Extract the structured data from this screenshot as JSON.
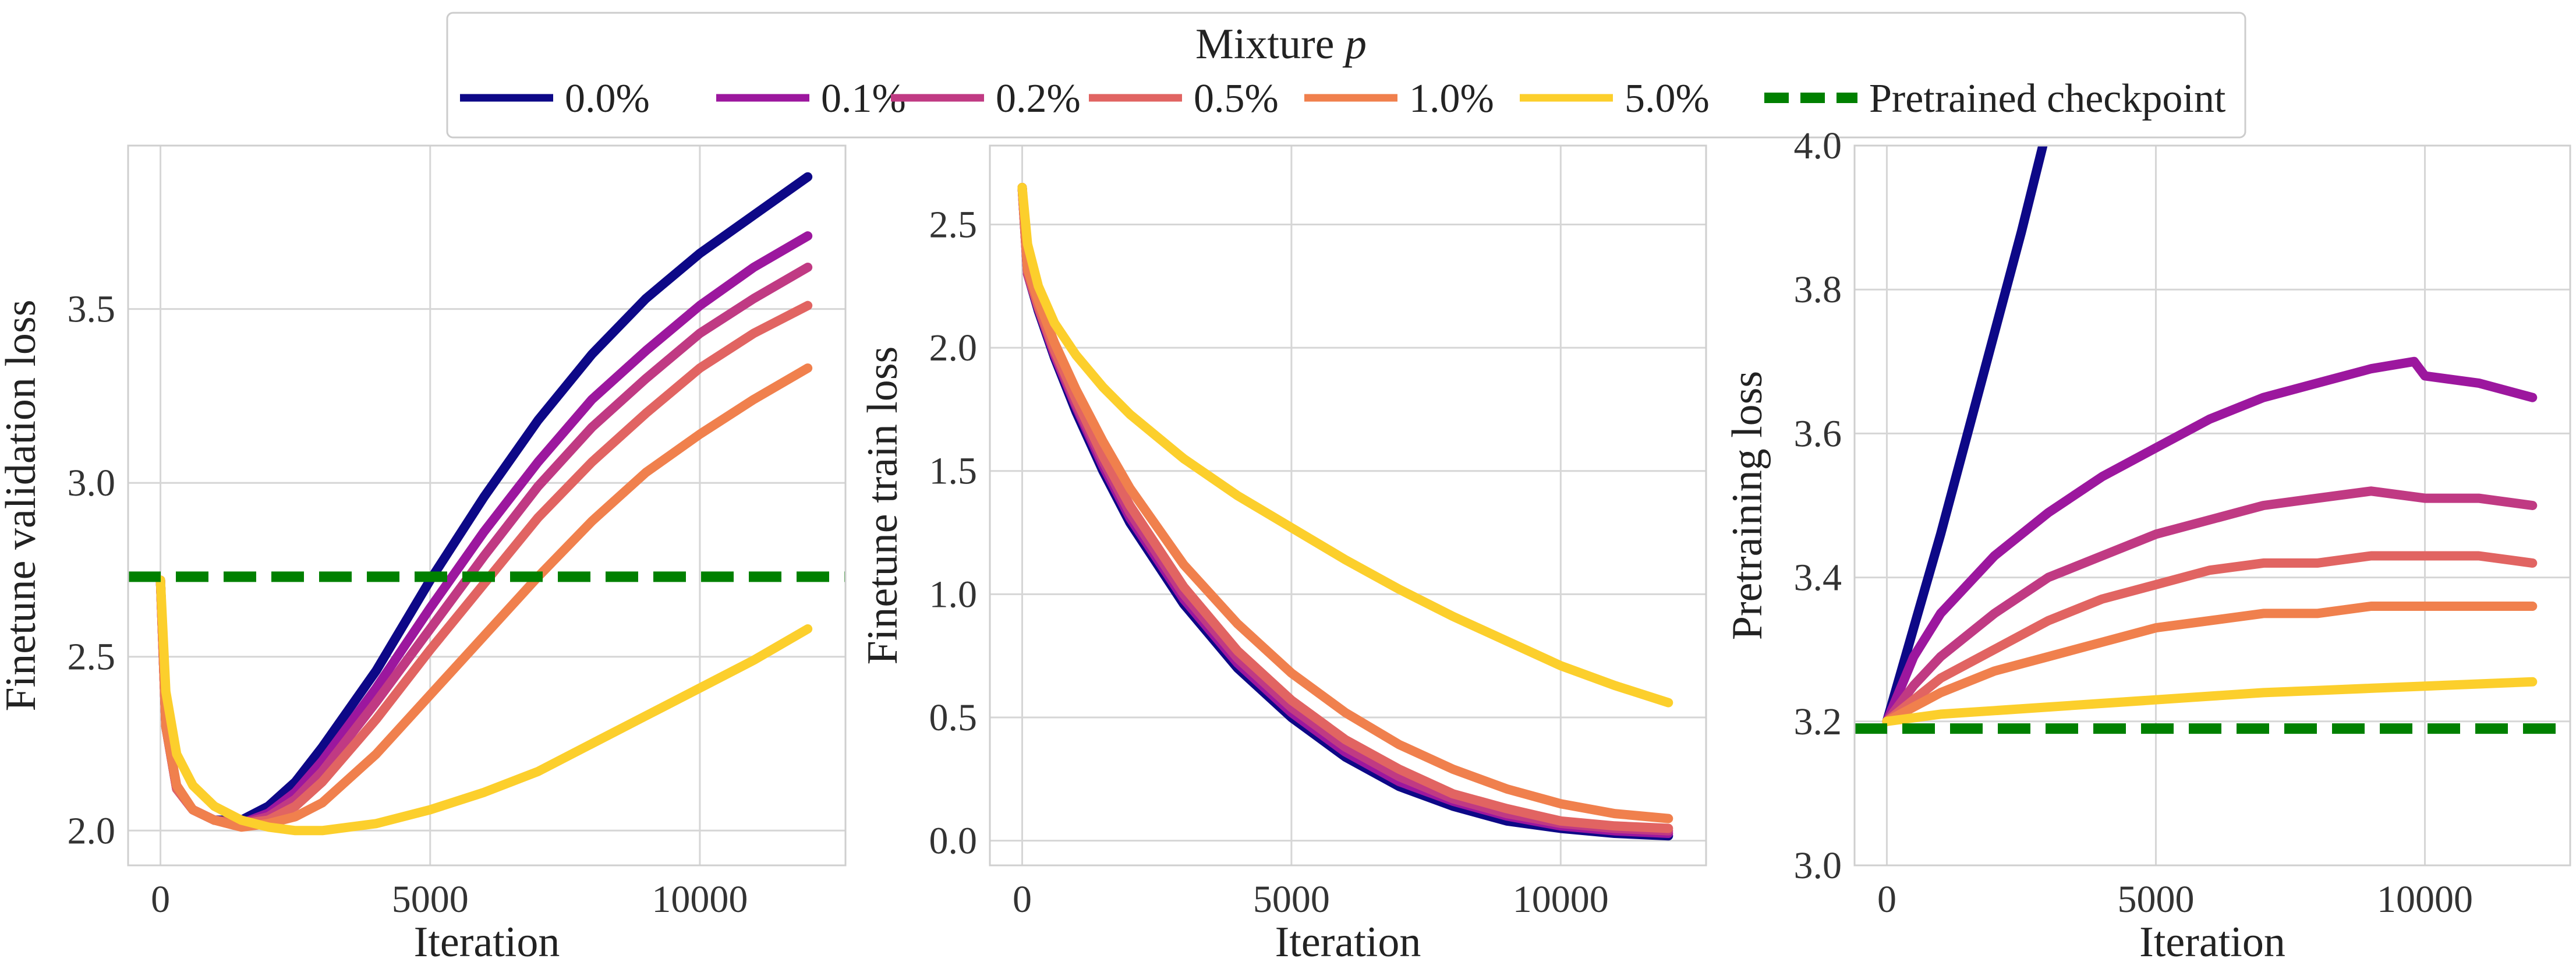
{
  "legend": {
    "title": "Mixture",
    "title_var": "p",
    "entries": [
      {
        "label": "0.0%",
        "color": "#0d0887",
        "dashed": false
      },
      {
        "label": "0.1%",
        "color": "#9c179e",
        "dashed": false
      },
      {
        "label": "0.2%",
        "color": "#c03a83",
        "dashed": false
      },
      {
        "label": "0.5%",
        "color": "#e16462",
        "dashed": false
      },
      {
        "label": "1.0%",
        "color": "#f0804d",
        "dashed": false
      },
      {
        "label": "5.0%",
        "color": "#fccf2c",
        "dashed": false
      },
      {
        "label": "Pretrained checkpoint",
        "color": "#008000",
        "dashed": true
      }
    ]
  },
  "chart_data": [
    {
      "type": "line",
      "xlabel": "Iteration",
      "ylabel": "Finetune validation loss",
      "xlim": [
        -600,
        12700
      ],
      "ylim": [
        1.9,
        3.97
      ],
      "xticks": [
        0,
        5000,
        10000
      ],
      "yticks": [
        2.0,
        2.5,
        3.0,
        3.5
      ],
      "ytick_labels": [
        "2.0",
        "2.5",
        "3.0",
        "3.5"
      ],
      "grid": true,
      "hline": {
        "y": 2.73,
        "label": "Pretrained checkpoint"
      },
      "series": [
        {
          "name": "0.0%",
          "x": [
            0,
            100,
            300,
            600,
            1000,
            1500,
            2000,
            2500,
            3000,
            4000,
            5000,
            6000,
            7000,
            8000,
            9000,
            10000,
            11000,
            12000
          ],
          "y": [
            2.72,
            2.3,
            2.12,
            2.06,
            2.03,
            2.03,
            2.07,
            2.14,
            2.24,
            2.46,
            2.72,
            2.96,
            3.18,
            3.37,
            3.53,
            3.66,
            3.77,
            3.88
          ]
        },
        {
          "name": "0.1%",
          "x": [
            0,
            100,
            300,
            600,
            1000,
            1500,
            2000,
            2500,
            3000,
            4000,
            5000,
            6000,
            7000,
            8000,
            9000,
            10000,
            11000,
            12000
          ],
          "y": [
            2.72,
            2.3,
            2.12,
            2.06,
            2.03,
            2.02,
            2.05,
            2.11,
            2.2,
            2.41,
            2.64,
            2.86,
            3.06,
            3.24,
            3.38,
            3.51,
            3.62,
            3.71
          ]
        },
        {
          "name": "0.2%",
          "x": [
            0,
            100,
            300,
            600,
            1000,
            1500,
            2000,
            2500,
            3000,
            4000,
            5000,
            6000,
            7000,
            8000,
            9000,
            10000,
            11000,
            12000
          ],
          "y": [
            2.72,
            2.3,
            2.12,
            2.06,
            2.03,
            2.02,
            2.04,
            2.09,
            2.17,
            2.37,
            2.58,
            2.79,
            2.99,
            3.16,
            3.3,
            3.43,
            3.53,
            3.62
          ]
        },
        {
          "name": "0.5%",
          "x": [
            0,
            100,
            300,
            600,
            1000,
            1500,
            2000,
            2500,
            3000,
            4000,
            5000,
            6000,
            7000,
            8000,
            9000,
            10000,
            11000,
            12000
          ],
          "y": [
            2.72,
            2.3,
            2.12,
            2.06,
            2.03,
            2.02,
            2.03,
            2.07,
            2.14,
            2.32,
            2.52,
            2.71,
            2.9,
            3.06,
            3.2,
            3.33,
            3.43,
            3.51
          ]
        },
        {
          "name": "1.0%",
          "x": [
            0,
            100,
            300,
            600,
            1000,
            1500,
            2000,
            2500,
            3000,
            4000,
            5000,
            6000,
            7000,
            8000,
            9000,
            10000,
            11000,
            12000
          ],
          "y": [
            2.72,
            2.3,
            2.13,
            2.06,
            2.03,
            2.01,
            2.02,
            2.04,
            2.08,
            2.22,
            2.39,
            2.56,
            2.73,
            2.89,
            3.03,
            3.14,
            3.24,
            3.33
          ]
        },
        {
          "name": "5.0%",
          "x": [
            0,
            100,
            300,
            600,
            1000,
            1500,
            2000,
            2500,
            3000,
            4000,
            5000,
            6000,
            7000,
            8000,
            9000,
            10000,
            11000,
            12000
          ],
          "y": [
            2.72,
            2.4,
            2.22,
            2.13,
            2.07,
            2.03,
            2.01,
            2.0,
            2.0,
            2.02,
            2.06,
            2.11,
            2.17,
            2.25,
            2.33,
            2.41,
            2.49,
            2.58
          ]
        }
      ]
    },
    {
      "type": "line",
      "xlabel": "Iteration",
      "ylabel": "Finetune train loss",
      "xlim": [
        -600,
        12700
      ],
      "ylim": [
        -0.1,
        2.82
      ],
      "xticks": [
        0,
        5000,
        10000
      ],
      "yticks": [
        0.0,
        0.5,
        1.0,
        1.5,
        2.0,
        2.5
      ],
      "ytick_labels": [
        "0.0",
        "0.5",
        "1.0",
        "1.5",
        "2.0",
        "2.5"
      ],
      "grid": true,
      "series": [
        {
          "name": "0.0%",
          "x": [
            0,
            100,
            300,
            600,
            1000,
            1500,
            2000,
            3000,
            4000,
            5000,
            6000,
            7000,
            8000,
            9000,
            10000,
            11000,
            12000
          ],
          "y": [
            2.65,
            2.3,
            2.15,
            1.96,
            1.74,
            1.5,
            1.29,
            0.96,
            0.7,
            0.5,
            0.34,
            0.22,
            0.14,
            0.08,
            0.05,
            0.03,
            0.02
          ]
        },
        {
          "name": "0.1%",
          "x": [
            0,
            100,
            300,
            600,
            1000,
            1500,
            2000,
            3000,
            4000,
            5000,
            6000,
            7000,
            8000,
            9000,
            10000,
            11000,
            12000
          ],
          "y": [
            2.65,
            2.3,
            2.16,
            1.97,
            1.76,
            1.52,
            1.31,
            0.98,
            0.72,
            0.52,
            0.36,
            0.24,
            0.16,
            0.1,
            0.06,
            0.04,
            0.03
          ]
        },
        {
          "name": "0.2%",
          "x": [
            0,
            100,
            300,
            600,
            1000,
            1500,
            2000,
            3000,
            4000,
            5000,
            6000,
            7000,
            8000,
            9000,
            10000,
            11000,
            12000
          ],
          "y": [
            2.65,
            2.3,
            2.16,
            1.98,
            1.77,
            1.54,
            1.33,
            1.0,
            0.74,
            0.54,
            0.38,
            0.26,
            0.17,
            0.11,
            0.07,
            0.05,
            0.04
          ]
        },
        {
          "name": "0.5%",
          "x": [
            0,
            100,
            300,
            600,
            1000,
            1500,
            2000,
            3000,
            4000,
            5000,
            6000,
            7000,
            8000,
            9000,
            10000,
            11000,
            12000
          ],
          "y": [
            2.65,
            2.31,
            2.17,
            1.99,
            1.79,
            1.56,
            1.36,
            1.03,
            0.77,
            0.57,
            0.41,
            0.29,
            0.19,
            0.13,
            0.08,
            0.06,
            0.05
          ]
        },
        {
          "name": "1.0%",
          "x": [
            0,
            100,
            300,
            600,
            1000,
            1500,
            2000,
            3000,
            4000,
            5000,
            6000,
            7000,
            8000,
            9000,
            10000,
            11000,
            12000
          ],
          "y": [
            2.65,
            2.32,
            2.19,
            2.02,
            1.83,
            1.62,
            1.43,
            1.12,
            0.88,
            0.68,
            0.52,
            0.39,
            0.29,
            0.21,
            0.15,
            0.11,
            0.09
          ]
        },
        {
          "name": "5.0%",
          "x": [
            0,
            100,
            300,
            600,
            1000,
            1500,
            2000,
            3000,
            4000,
            5000,
            6000,
            7000,
            8000,
            9000,
            10000,
            11000,
            12000
          ],
          "y": [
            2.65,
            2.42,
            2.25,
            2.1,
            1.97,
            1.84,
            1.73,
            1.55,
            1.4,
            1.27,
            1.14,
            1.02,
            0.91,
            0.81,
            0.71,
            0.63,
            0.56
          ]
        }
      ]
    },
    {
      "type": "line",
      "xlabel": "Iteration",
      "ylabel": "Pretraining loss",
      "xlim": [
        -600,
        12700
      ],
      "ylim": [
        3.0,
        4.0
      ],
      "xticks": [
        0,
        5000,
        10000
      ],
      "yticks": [
        3.0,
        3.2,
        3.4,
        3.6,
        3.8,
        4.0
      ],
      "ytick_labels": [
        "3.0",
        "3.2",
        "3.4",
        "3.6",
        "3.8",
        "4.0"
      ],
      "grid": true,
      "hline": {
        "y": 3.19,
        "label": "Pretrained checkpoint"
      },
      "series": [
        {
          "name": "0.0%",
          "x": [
            0,
            500,
            1000,
            1500,
            2000,
            2500,
            2900,
            3100
          ],
          "y": [
            3.2,
            3.33,
            3.46,
            3.6,
            3.74,
            3.88,
            4.0,
            4.06
          ]
        },
        {
          "name": "0.1%",
          "x": [
            0,
            500,
            1000,
            2000,
            3000,
            4000,
            5000,
            6000,
            7000,
            8000,
            9000,
            9800,
            10000,
            11000,
            12000
          ],
          "y": [
            3.2,
            3.29,
            3.35,
            3.43,
            3.49,
            3.54,
            3.58,
            3.62,
            3.65,
            3.67,
            3.69,
            3.7,
            3.68,
            3.67,
            3.65
          ]
        },
        {
          "name": "0.2%",
          "x": [
            0,
            500,
            1000,
            2000,
            3000,
            4000,
            5000,
            6000,
            7000,
            8000,
            9000,
            10000,
            11000,
            12000
          ],
          "y": [
            3.2,
            3.25,
            3.29,
            3.35,
            3.4,
            3.43,
            3.46,
            3.48,
            3.5,
            3.51,
            3.52,
            3.51,
            3.51,
            3.5
          ]
        },
        {
          "name": "0.5%",
          "x": [
            0,
            500,
            1000,
            2000,
            3000,
            4000,
            5000,
            6000,
            7000,
            8000,
            9000,
            10000,
            11000,
            12000
          ],
          "y": [
            3.2,
            3.23,
            3.26,
            3.3,
            3.34,
            3.37,
            3.39,
            3.41,
            3.42,
            3.42,
            3.43,
            3.43,
            3.43,
            3.42
          ]
        },
        {
          "name": "1.0%",
          "x": [
            0,
            500,
            1000,
            2000,
            3000,
            4000,
            5000,
            6000,
            7000,
            8000,
            9000,
            10000,
            11000,
            12000
          ],
          "y": [
            3.2,
            3.22,
            3.24,
            3.27,
            3.29,
            3.31,
            3.33,
            3.34,
            3.35,
            3.35,
            3.36,
            3.36,
            3.36,
            3.36
          ]
        },
        {
          "name": "5.0%",
          "x": [
            0,
            1000,
            2000,
            3000,
            4000,
            5000,
            6000,
            7000,
            8000,
            9000,
            10000,
            11000,
            12000
          ],
          "y": [
            3.2,
            3.21,
            3.215,
            3.22,
            3.225,
            3.23,
            3.235,
            3.24,
            3.243,
            3.246,
            3.249,
            3.252,
            3.255
          ]
        }
      ]
    }
  ]
}
